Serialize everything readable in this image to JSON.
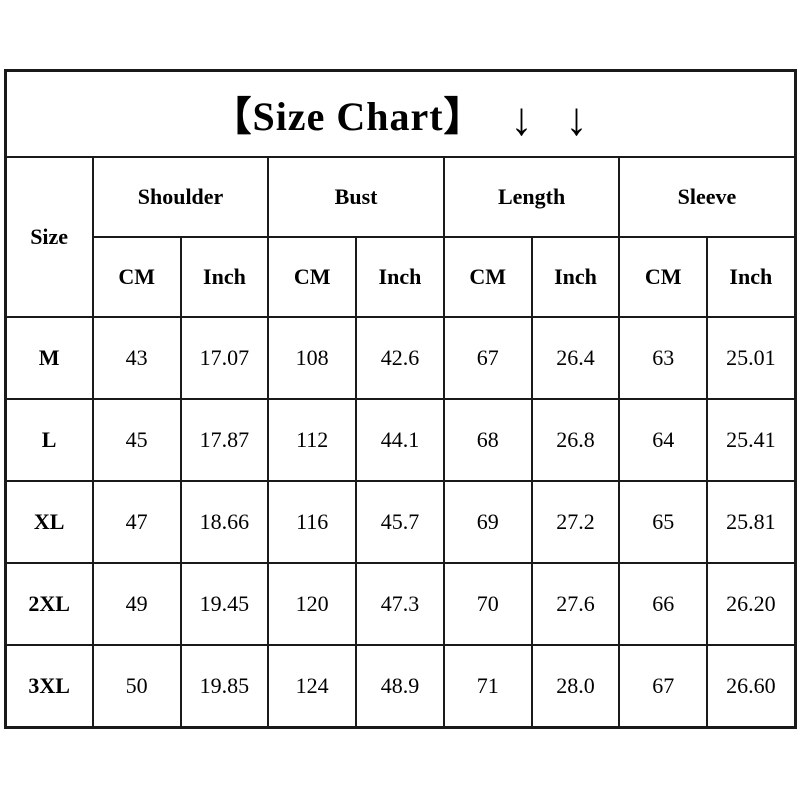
{
  "title": {
    "text": "【Size Chart】",
    "arrow": "↓"
  },
  "table": {
    "size_header": "Size",
    "measure_headers": [
      "Shoulder",
      "Bust",
      "Length",
      "Sleeve"
    ],
    "unit_headers": [
      "CM",
      "Inch"
    ],
    "rows": [
      {
        "size": "M",
        "values": [
          "43",
          "17.07",
          "108",
          "42.6",
          "67",
          "26.4",
          "63",
          "25.01"
        ]
      },
      {
        "size": "L",
        "values": [
          "45",
          "17.87",
          "112",
          "44.1",
          "68",
          "26.8",
          "64",
          "25.41"
        ]
      },
      {
        "size": "XL",
        "values": [
          "47",
          "18.66",
          "116",
          "45.7",
          "69",
          "27.2",
          "65",
          "25.81"
        ]
      },
      {
        "size": "2XL",
        "values": [
          "49",
          "19.45",
          "120",
          "47.3",
          "70",
          "27.6",
          "66",
          "26.20"
        ]
      },
      {
        "size": "3XL",
        "values": [
          "50",
          "19.85",
          "124",
          "48.9",
          "71",
          "28.0",
          "67",
          "26.60"
        ]
      }
    ]
  },
  "colors": {
    "border": "#1a1a1a",
    "text": "#000000",
    "background": "#ffffff"
  },
  "chart_data": {
    "type": "table",
    "title": "【Size Chart】",
    "columns": [
      "Size",
      "Shoulder CM",
      "Shoulder Inch",
      "Bust CM",
      "Bust Inch",
      "Length CM",
      "Length Inch",
      "Sleeve CM",
      "Sleeve Inch"
    ],
    "rows": [
      [
        "M",
        "43",
        "17.07",
        "108",
        "42.6",
        "67",
        "26.4",
        "63",
        "25.01"
      ],
      [
        "L",
        "45",
        "17.87",
        "112",
        "44.1",
        "68",
        "26.8",
        "64",
        "25.41"
      ],
      [
        "XL",
        "47",
        "18.66",
        "116",
        "45.7",
        "69",
        "27.2",
        "65",
        "25.81"
      ],
      [
        "2XL",
        "49",
        "19.45",
        "120",
        "47.3",
        "70",
        "27.6",
        "66",
        "26.20"
      ],
      [
        "3XL",
        "50",
        "19.85",
        "124",
        "48.9",
        "71",
        "28.0",
        "67",
        "26.60"
      ]
    ]
  }
}
